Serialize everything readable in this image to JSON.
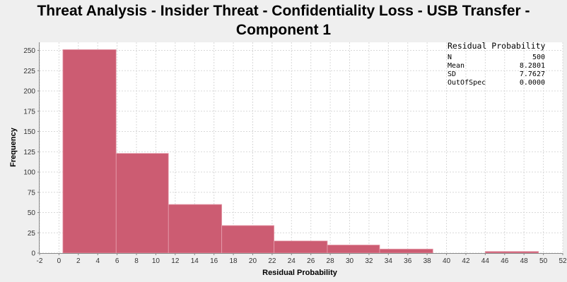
{
  "chart_data": {
    "type": "bar",
    "title_lines": [
      "Threat Analysis - Insider Threat - Confidentiality Loss - USB Transfer -",
      "Component 1"
    ],
    "xlabel": "Residual Probability",
    "ylabel": "Frequency",
    "xlim": [
      -2,
      52
    ],
    "ylim": [
      0,
      260
    ],
    "x_ticks": [
      -2,
      0,
      2,
      4,
      6,
      8,
      10,
      12,
      14,
      16,
      18,
      20,
      22,
      24,
      26,
      28,
      30,
      32,
      34,
      36,
      38,
      40,
      42,
      44,
      46,
      48,
      50,
      52
    ],
    "y_ticks": [
      0,
      25,
      50,
      75,
      100,
      125,
      150,
      175,
      200,
      225,
      250
    ],
    "grid": true,
    "bar_color": "#cc5c72",
    "bins": [
      {
        "start": 0.4,
        "end": 5.9,
        "value": 251
      },
      {
        "start": 5.9,
        "end": 11.3,
        "value": 123
      },
      {
        "start": 11.3,
        "end": 16.8,
        "value": 60
      },
      {
        "start": 16.8,
        "end": 22.2,
        "value": 34
      },
      {
        "start": 22.2,
        "end": 27.7,
        "value": 15
      },
      {
        "start": 27.7,
        "end": 33.1,
        "value": 10
      },
      {
        "start": 33.1,
        "end": 38.6,
        "value": 5
      },
      {
        "start": 38.6,
        "end": 44.0,
        "value": 0
      },
      {
        "start": 44.0,
        "end": 49.5,
        "value": 2
      }
    ],
    "stats": {
      "title": "Residual Probability",
      "rows": [
        {
          "label": "N",
          "value": "500"
        },
        {
          "label": "Mean",
          "value": "8.2801"
        },
        {
          "label": "SD",
          "value": "7.7627"
        },
        {
          "label": "OutOfSpec",
          "value": "0.0000"
        }
      ]
    }
  }
}
